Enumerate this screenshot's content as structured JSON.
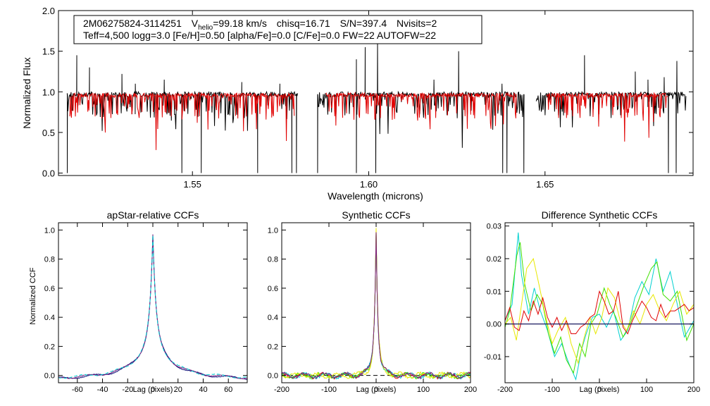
{
  "info_box": {
    "line1": {
      "star_id": "2M06275824-3114251",
      "vhelio_prefix": "V",
      "vhelio_sub": "helio",
      "vhelio_value": "=99.18 km/s",
      "chisq": "chisq=16.71",
      "snr": "S/N=397.4",
      "nvisits": "Nvisits=2"
    },
    "line2": "Teff=4,500 logg=3.0 [Fe/H]=0.50 [alpha/Fe]=0.0 [C/Fe]=0.0 FW=22 AUTOFW=22"
  },
  "colors": {
    "observed": "#000000",
    "model": "#e00000",
    "visit1": "#e00000",
    "visit2": "#00d0d0",
    "visit3": "#40e000",
    "visit4": "#e8e800",
    "navy": "#10107a",
    "purple": "#7a2080"
  },
  "chart_data": [
    {
      "id": "spectrum",
      "type": "line",
      "title": "",
      "xlabel": "Wavelength (microns)",
      "ylabel": "Normalized Flux",
      "xlim": [
        1.512,
        1.692
      ],
      "ylim": [
        -0.03,
        2.0
      ],
      "xticks": [
        1.55,
        1.6,
        1.65
      ],
      "xtick_labels": [
        "1.55",
        "1.60",
        "1.65"
      ],
      "yticks": [
        0.0,
        0.5,
        1.0,
        1.5,
        2.0
      ],
      "ytick_labels": [
        "0.0",
        "0.5",
        "1.0",
        "1.5",
        "2.0"
      ],
      "chip_ranges": [
        [
          1.5145,
          1.58
        ],
        [
          1.5855,
          1.644
        ],
        [
          1.6475,
          1.69
        ]
      ],
      "continuum_level": 0.97,
      "series": [
        {
          "name": "observed",
          "color_key": "observed",
          "deep_features": [
            [
              1.5145,
              0.0
            ],
            [
              1.547,
              0.0
            ],
            [
              1.5525,
              0.0
            ],
            [
              1.5685,
              0.0
            ],
            [
              1.5782,
              0.0
            ],
            [
              1.5795,
              0.0
            ],
            [
              1.5855,
              0.0
            ],
            [
              1.5965,
              0.0
            ],
            [
              1.602,
              0.0
            ],
            [
              1.638,
              0.0
            ],
            [
              1.6392,
              0.0
            ],
            [
              1.644,
              0.0
            ],
            [
              1.685,
              0.0
            ],
            [
              1.6872,
              0.0
            ]
          ],
          "spikes": [
            [
              1.5172,
              1.45
            ],
            [
              1.5208,
              1.3
            ],
            [
              1.53,
              1.22
            ],
            [
              1.5338,
              1.1
            ],
            [
              1.542,
              1.15
            ],
            [
              1.564,
              1.12
            ],
            [
              1.5748,
              1.1
            ],
            [
              1.5965,
              1.4
            ],
            [
              1.599,
              1.55
            ],
            [
              1.6025,
              1.62
            ],
            [
              1.6185,
              1.15
            ],
            [
              1.6255,
              1.5
            ],
            [
              1.6378,
              1.1
            ],
            [
              1.6452,
              1.08
            ],
            [
              1.6612,
              1.45
            ],
            [
              1.6756,
              1.25
            ],
            [
              1.6792,
              1.15
            ],
            [
              1.6838,
              1.18
            ],
            [
              1.6874,
              1.38
            ]
          ]
        },
        {
          "name": "model",
          "color_key": "model",
          "model_ranges": [
            [
              1.5152,
              1.579
            ],
            [
              1.5878,
              1.642
            ],
            [
              1.6505,
              1.6848
            ]
          ]
        }
      ]
    },
    {
      "id": "apstar-ccf",
      "type": "line",
      "title": "apStar-relative CCFs",
      "xlabel": "Lag (pixels)",
      "ylabel": "Normalized CCF",
      "xlim": [
        -75,
        75
      ],
      "ylim": [
        -0.05,
        1.05
      ],
      "xticks": [
        -60,
        -40,
        -20,
        0,
        20,
        40,
        60
      ],
      "xtick_labels": [
        "-60",
        "-40",
        "-20",
        "0",
        "20",
        "40",
        "60"
      ],
      "yticks": [
        0.0,
        0.2,
        0.4,
        0.6,
        0.8,
        1.0
      ],
      "ytick_labels": [
        "0.0",
        "0.2",
        "0.4",
        "0.6",
        "0.8",
        "1.0"
      ],
      "series": [
        {
          "name": "ccf-navy",
          "color_key": "navy",
          "peak": 1.0,
          "offset": 0.0
        },
        {
          "name": "ccf-purple",
          "color_key": "purple",
          "peak": 0.99,
          "offset": 0.003
        },
        {
          "name": "ccf-cyan-dashed",
          "color_key": "visit2",
          "peak": 0.98,
          "offset": 0.006,
          "dashed": true
        }
      ]
    },
    {
      "id": "synthetic-ccf",
      "type": "line",
      "title": "Synthetic CCFs",
      "xlabel": "Lag (pixels)",
      "ylabel": "",
      "xlim": [
        -200,
        200
      ],
      "ylim": [
        -0.05,
        1.05
      ],
      "xticks": [
        -200,
        -100,
        0,
        100,
        200
      ],
      "xtick_labels": [
        "-200",
        "-100",
        "0",
        "100",
        "200"
      ],
      "yticks": [
        0.0,
        0.2,
        0.4,
        0.6,
        0.8,
        1.0
      ],
      "ytick_labels": [
        "0.0",
        "0.2",
        "0.4",
        "0.6",
        "0.8",
        "1.0"
      ],
      "baseline": 0.0,
      "series": [
        {
          "name": "visit-1",
          "color_key": "visit1",
          "seed": 11
        },
        {
          "name": "visit-2",
          "color_key": "visit2",
          "seed": 23
        },
        {
          "name": "visit-3",
          "color_key": "visit3",
          "seed": 37
        },
        {
          "name": "visit-4",
          "color_key": "visit4",
          "seed": 51
        },
        {
          "name": "combined",
          "color_key": "purple",
          "seed": 61
        }
      ]
    },
    {
      "id": "difference-ccf",
      "type": "line",
      "title": "Difference Synthetic CCFs",
      "xlabel": "Lag (pixels)",
      "ylabel": "",
      "xlim": [
        -200,
        200
      ],
      "ylim": [
        -0.018,
        0.031
      ],
      "xticks": [
        -200,
        -100,
        0,
        100,
        200
      ],
      "xtick_labels": [
        "-200",
        "-100",
        "0",
        "100",
        "200"
      ],
      "yticks": [
        -0.01,
        0.0,
        0.01,
        0.02,
        0.03
      ],
      "ytick_labels": [
        "-0.01",
        "0.00",
        "0.01",
        "0.02",
        "0.03"
      ],
      "baseline": 0.0,
      "series": [
        {
          "name": "diff-cyan",
          "color_key": "visit2",
          "x": [
            -200,
            -185,
            -172,
            -165,
            -150,
            -138,
            -125,
            -110,
            -95,
            -80,
            -65,
            -50,
            -38,
            -28,
            -15,
            0,
            15,
            30,
            45,
            60,
            75,
            90,
            105,
            120,
            135,
            150,
            165,
            180,
            200
          ],
          "y": [
            0.001,
            0.006,
            0.028,
            0.015,
            0.003,
            0.011,
            0.004,
            -0.002,
            -0.01,
            -0.006,
            -0.012,
            -0.017,
            -0.008,
            -0.003,
            0.002,
            0.003,
            -0.001,
            0.004,
            -0.005,
            -0.002,
            0.008,
            0.013,
            0.009,
            0.02,
            0.01,
            0.016,
            0.006,
            -0.004,
            0.001
          ]
        },
        {
          "name": "diff-green",
          "color_key": "visit3",
          "x": [
            -200,
            -190,
            -175,
            -168,
            -158,
            -145,
            -132,
            -120,
            -108,
            -95,
            -82,
            -70,
            -55,
            -42,
            -30,
            -18,
            -5,
            10,
            22,
            35,
            50,
            65,
            80,
            95,
            110,
            122,
            135,
            150,
            165,
            185,
            200
          ],
          "y": [
            -0.001,
            0.004,
            0.021,
            0.025,
            0.012,
            0.004,
            0.009,
            0.006,
            -0.003,
            -0.009,
            -0.004,
            -0.011,
            -0.015,
            -0.006,
            -0.01,
            0.0,
            0.003,
            0.011,
            0.006,
            0.002,
            -0.004,
            0.0,
            0.006,
            0.012,
            0.017,
            0.019,
            0.009,
            0.007,
            0.01,
            -0.005,
            0.0
          ]
        },
        {
          "name": "diff-yellow",
          "color_key": "visit4",
          "x": [
            -200,
            -188,
            -176,
            -166,
            -154,
            -140,
            -128,
            -115,
            -100,
            -88,
            -72,
            -60,
            -45,
            -32,
            -20,
            -8,
            5,
            18,
            32,
            44,
            58,
            72,
            86,
            100,
            114,
            128,
            142,
            156,
            170,
            185,
            200
          ],
          "y": [
            0.0,
            0.002,
            -0.005,
            0.005,
            0.017,
            0.02,
            0.012,
            0.003,
            -0.006,
            -0.002,
            0.002,
            -0.006,
            -0.012,
            -0.004,
            0.002,
            -0.003,
            0.002,
            0.011,
            0.008,
            0.001,
            -0.002,
            0.004,
            0.0,
            0.006,
            0.009,
            0.004,
            0.001,
            0.006,
            0.01,
            0.003,
            0.006
          ]
        },
        {
          "name": "diff-red",
          "color_key": "visit1",
          "x": [
            -200,
            -190,
            -180,
            -170,
            -160,
            -150,
            -140,
            -130,
            -120,
            -110,
            -100,
            -90,
            -80,
            -70,
            -60,
            -50,
            -40,
            -30,
            -20,
            -10,
            0,
            10,
            20,
            30,
            40,
            50,
            60,
            70,
            80,
            90,
            100,
            110,
            120,
            130,
            140,
            150,
            160,
            170,
            180,
            190,
            200
          ],
          "y": [
            0.001,
            0.005,
            -0.001,
            -0.002,
            0.004,
            0.001,
            0.007,
            0.003,
            0.008,
            0.002,
            -0.001,
            0.002,
            -0.002,
            0.001,
            -0.003,
            -0.003,
            -0.001,
            0.0,
            0.002,
            0.003,
            0.01,
            0.007,
            0.003,
            0.004,
            0.01,
            -0.001,
            -0.003,
            0.001,
            0.004,
            0.007,
            0.005,
            0.002,
            0.001,
            0.006,
            0.002,
            0.004,
            0.004,
            0.005,
            0.006,
            0.004,
            0.005
          ]
        }
      ]
    }
  ]
}
